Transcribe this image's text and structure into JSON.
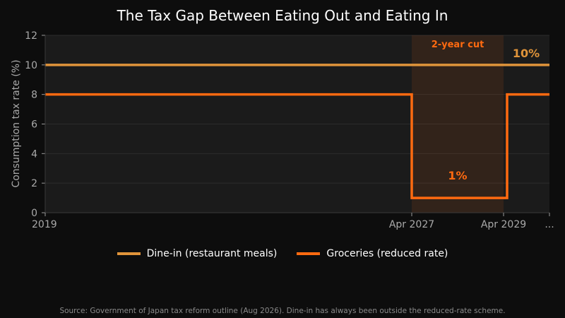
{
  "chart_data": {
    "type": "line",
    "title": "The Tax Gap Between Eating Out and Eating In",
    "ylabel": "Consumption tax rate (%)",
    "xlabel": "",
    "ylim": [
      0,
      12
    ],
    "yticks": [
      "0",
      "2",
      "4",
      "6",
      "8",
      "10",
      "12"
    ],
    "xticks": [
      "2019",
      "Apr 2027",
      "Apr 2029",
      "..."
    ],
    "grid": true,
    "legend_position": "bottom-center",
    "series": [
      {
        "name": "Dine-in (restaurant meals)",
        "color": "#e0943a",
        "points": [
          [
            "2019",
            10
          ],
          [
            "Apr 2027",
            10
          ],
          [
            "Apr 2029",
            10
          ],
          [
            "...",
            10
          ]
        ]
      },
      {
        "name": "Groceries (reduced rate)",
        "color": "#ff6a10",
        "step": true,
        "points": [
          [
            "2019",
            8
          ],
          [
            "Apr 2027",
            8
          ],
          [
            "Apr 2027",
            1
          ],
          [
            "Apr 2029",
            1
          ],
          [
            "Apr 2029",
            8
          ],
          [
            "...",
            8
          ]
        ]
      }
    ],
    "highlight": {
      "from": "Apr 2027",
      "to": "Apr 2029",
      "label": "2-year cut"
    },
    "annotations": [
      {
        "text": "10%",
        "x": "...",
        "y": 10,
        "color": "#e0943a"
      },
      {
        "text": "1%",
        "x": "Apr 2028",
        "y": 1,
        "color": "#ff6a10"
      }
    ]
  },
  "source_note": "Source: Government of Japan tax reform outline (Aug 2026). Dine-in has always been outside the reduced-rate scheme."
}
